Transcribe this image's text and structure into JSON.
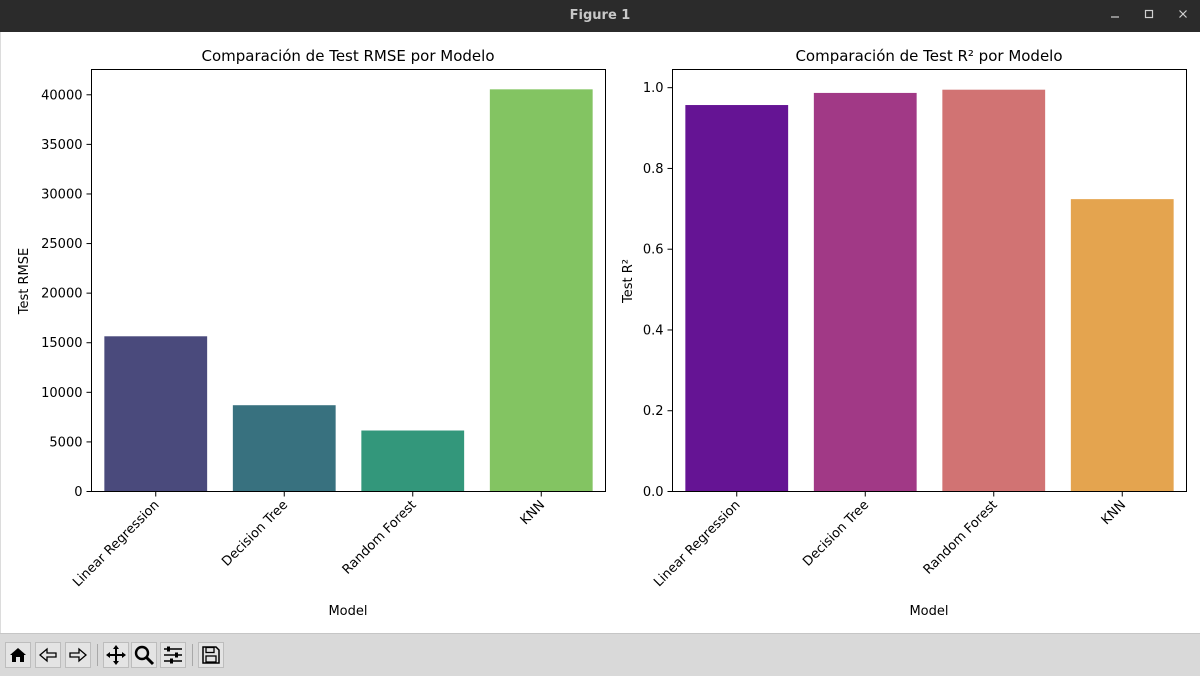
{
  "window": {
    "title": "Figure 1"
  },
  "toolbar": {
    "icons": [
      "home-icon",
      "back-icon",
      "forward-icon",
      "pan-icon",
      "zoom-icon",
      "configure-subplots-icon",
      "save-icon"
    ]
  },
  "chart_data": [
    {
      "type": "bar",
      "title": "Comparación de Test RMSE por Modelo",
      "xlabel": "Model",
      "ylabel": "Test RMSE",
      "categories": [
        "Linear Regression",
        "Decision Tree",
        "Random Forest",
        "KNN"
      ],
      "values": [
        15650,
        8700,
        6150,
        40550
      ],
      "ylim": [
        0,
        42550
      ],
      "yticks": [
        0,
        5000,
        10000,
        15000,
        20000,
        25000,
        30000,
        35000,
        40000
      ],
      "ytick_labels": [
        "0",
        "5000",
        "10000",
        "15000",
        "20000",
        "25000",
        "30000",
        "35000",
        "40000"
      ],
      "colors": [
        "#4a4a7c",
        "#38717f",
        "#33977b",
        "#83c462"
      ],
      "grid": false
    },
    {
      "type": "bar",
      "title": "Comparación de Test R² por Modelo",
      "xlabel": "Model",
      "ylabel": "Test R²",
      "categories": [
        "Linear Regression",
        "Decision Tree",
        "Random Forest",
        "KNN"
      ],
      "values": [
        0.957,
        0.987,
        0.995,
        0.724
      ],
      "ylim": [
        0,
        1.045
      ],
      "yticks": [
        0.0,
        0.2,
        0.4,
        0.6,
        0.8,
        1.0
      ],
      "ytick_labels": [
        "0.0",
        "0.2",
        "0.4",
        "0.6",
        "0.8",
        "1.0"
      ],
      "colors": [
        "#651494",
        "#a13986",
        "#d17373",
        "#e4a44f"
      ],
      "grid": false
    }
  ]
}
